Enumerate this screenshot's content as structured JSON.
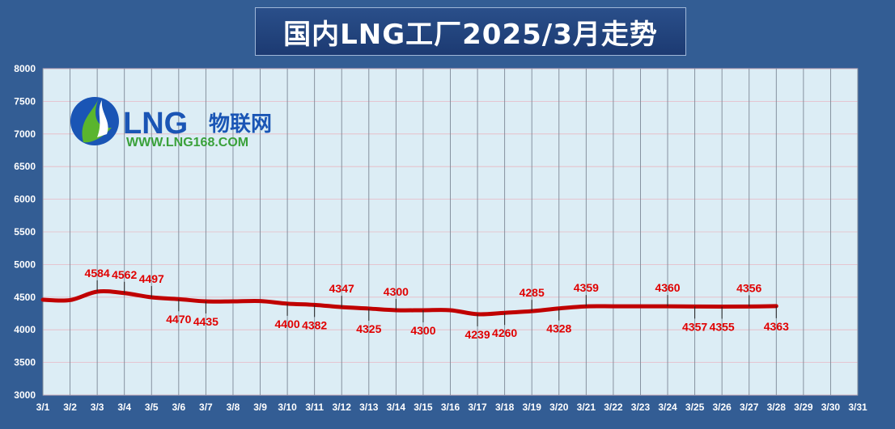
{
  "title": "国内LNG工厂2025/3月走势",
  "logo": {
    "main": "LNG",
    "cn": "物联网",
    "url": "WWW.LNG168.COM"
  },
  "colors": {
    "background": "#335d94",
    "plot_bg": "#dcedf5",
    "line": "#c00000",
    "label": "#e00000",
    "logo_blue": "#1a55b5",
    "logo_green": "#3aa13a"
  },
  "chart_data": {
    "type": "line",
    "title": "国内LNG工厂2025/3月走势",
    "xlabel": "",
    "ylabel": "",
    "ylim": [
      3000,
      8000
    ],
    "yticks": [
      3000,
      3500,
      4000,
      4500,
      5000,
      5500,
      6000,
      6500,
      7000,
      7500,
      8000
    ],
    "grid": true,
    "categories": [
      "3/1",
      "3/2",
      "3/3",
      "3/4",
      "3/5",
      "3/6",
      "3/7",
      "3/8",
      "3/9",
      "3/10",
      "3/11",
      "3/12",
      "3/13",
      "3/14",
      "3/15",
      "3/16",
      "3/17",
      "3/18",
      "3/19",
      "3/20",
      "3/21",
      "3/22",
      "3/23",
      "3/24",
      "3/25",
      "3/26",
      "3/27",
      "3/28",
      "3/29",
      "3/30",
      "3/31"
    ],
    "series": [
      {
        "values": [
          4460,
          4455,
          4584,
          4562,
          4497,
          4470,
          4435,
          4435,
          4440,
          4400,
          4382,
          4347,
          4325,
          4300,
          4300,
          4300,
          4239,
          4260,
          4285,
          4328,
          4359,
          4360,
          4360,
          4360,
          4357,
          4355,
          4356,
          4363,
          null,
          null,
          null
        ]
      }
    ],
    "data_labels": [
      {
        "text": "4584",
        "index": 2,
        "pos": "above"
      },
      {
        "text": "4562",
        "index": 3,
        "pos": "above"
      },
      {
        "text": "4497",
        "index": 4,
        "pos": "above"
      },
      {
        "text": "4470",
        "index": 5,
        "pos": "below"
      },
      {
        "text": "4435",
        "index": 6,
        "pos": "below"
      },
      {
        "text": "4400",
        "index": 9,
        "pos": "below"
      },
      {
        "text": "4382",
        "index": 10,
        "pos": "below"
      },
      {
        "text": "4347",
        "index": 11,
        "pos": "above"
      },
      {
        "text": "4325",
        "index": 12,
        "pos": "below"
      },
      {
        "text": "4300",
        "index": 13,
        "pos": "above"
      },
      {
        "text": "4300",
        "index": 14,
        "pos": "below"
      },
      {
        "text": "4239",
        "index": 16,
        "pos": "below"
      },
      {
        "text": "4260",
        "index": 17,
        "pos": "below"
      },
      {
        "text": "4285",
        "index": 18,
        "pos": "above"
      },
      {
        "text": "4328",
        "index": 19,
        "pos": "below"
      },
      {
        "text": "4359",
        "index": 20,
        "pos": "above"
      },
      {
        "text": "4360",
        "index": 23,
        "pos": "above"
      },
      {
        "text": "4357",
        "index": 24,
        "pos": "below"
      },
      {
        "text": "4355",
        "index": 25,
        "pos": "below"
      },
      {
        "text": "4356",
        "index": 26,
        "pos": "above"
      },
      {
        "text": "4363",
        "index": 27,
        "pos": "below"
      }
    ]
  }
}
